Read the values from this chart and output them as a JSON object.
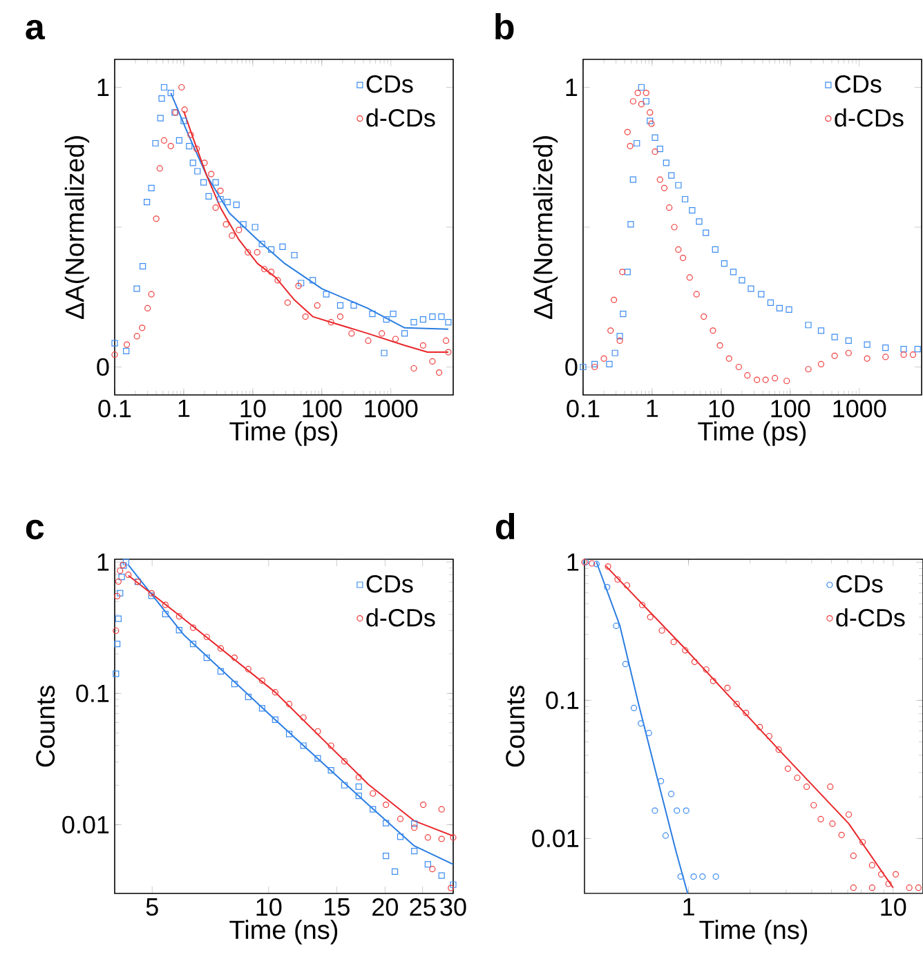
{
  "chart_data": [
    {
      "type": "scatter",
      "title": "a",
      "xlabel": "Time (ps)",
      "ylabel": "ΔA(Normalized)",
      "log": "x",
      "legend": "top right",
      "xlim": [
        0.1,
        8000
      ],
      "ylim": [
        -0.1,
        1.1
      ],
      "xticks": [
        0.1,
        1,
        10,
        100,
        1000
      ],
      "yticks": [
        0,
        {
          "value": 0.5,
          "label": null
        },
        1
      ],
      "series": [
        {
          "name": "CDs",
          "color": "#3c8cf0",
          "marker": "square",
          "x": [
            0.1,
            0.147,
            0.209,
            0.255,
            0.293,
            0.34,
            0.39,
            0.46,
            0.48,
            0.52,
            0.65,
            0.74,
            0.86,
            1.0,
            1.2,
            1.36,
            1.58,
            1.94,
            2.3,
            2.9,
            3.4,
            4.3,
            5.8,
            7.3,
            10.8,
            13.6,
            18.5,
            27,
            40,
            50,
            74,
            116,
            185,
            290,
            540,
            800,
            860,
            1080,
            1580,
            2150,
            2930,
            4000,
            5400,
            6800
          ],
          "values": [
            0.085,
            0.057,
            0.28,
            0.36,
            0.59,
            0.64,
            0.8,
            0.89,
            0.96,
            1.0,
            0.98,
            0.91,
            0.81,
            0.88,
            0.79,
            0.73,
            0.7,
            0.66,
            0.61,
            0.66,
            0.6,
            0.59,
            0.58,
            0.51,
            0.5,
            0.44,
            0.42,
            0.43,
            0.4,
            0.3,
            0.31,
            0.26,
            0.22,
            0.22,
            0.19,
            0.05,
            0.17,
            0.19,
            0.12,
            0.16,
            0.17,
            0.18,
            0.18,
            0.16
          ]
        },
        {
          "name": "d-CDs",
          "color": "#f03c3c",
          "marker": "circle",
          "x": [
            0.1,
            0.15,
            0.21,
            0.25,
            0.3,
            0.34,
            0.4,
            0.45,
            0.52,
            0.65,
            0.76,
            0.93,
            1.03,
            1.26,
            1.54,
            2.0,
            2.5,
            2.9,
            3.4,
            4.1,
            5.0,
            6.3,
            8.5,
            11.6,
            14.7,
            18.5,
            23,
            32,
            46,
            58,
            86,
            136,
            185,
            270,
            470,
            740,
            1170,
            2150,
            2930,
            4000,
            5000,
            6300,
            6800
          ],
          "values": [
            0.044,
            0.08,
            0.11,
            0.14,
            0.21,
            0.26,
            0.53,
            0.71,
            0.81,
            0.79,
            0.91,
            1.0,
            0.92,
            0.83,
            0.78,
            0.73,
            0.69,
            0.57,
            0.63,
            0.51,
            0.47,
            0.49,
            0.41,
            0.41,
            0.35,
            0.34,
            0.31,
            0.23,
            0.29,
            0.18,
            0.22,
            0.16,
            0.18,
            0.12,
            0.094,
            0.12,
            0.1,
            -0.005,
            0.077,
            0.02,
            -0.02,
            0.094,
            0.053
          ]
        },
        {
          "type": "line",
          "color": "#2a7de1",
          "marker": "none",
          "x": [
            0.65,
            1.17,
            2.15,
            4.6,
            11.7,
            29,
            100,
            460,
            1580,
            6800
          ],
          "values": [
            0.98,
            0.83,
            0.685,
            0.55,
            0.455,
            0.37,
            0.28,
            0.21,
            0.14,
            0.135
          ]
        },
        {
          "type": "line",
          "color": "#e8262a",
          "marker": "none",
          "x": [
            1.0,
            1.36,
            2.15,
            3.4,
            6.3,
            11.7,
            21.5,
            40,
            74,
            136,
            460,
            1580,
            3400,
            6800
          ],
          "values": [
            0.915,
            0.82,
            0.685,
            0.57,
            0.455,
            0.37,
            0.32,
            0.24,
            0.18,
            0.16,
            0.12,
            0.077,
            0.053,
            0.053
          ]
        }
      ]
    },
    {
      "type": "scatter",
      "title": "b",
      "xlabel": "Time (ps)",
      "ylabel": "ΔA(Normalized)",
      "log": "x",
      "legend": "top right",
      "xlim": [
        0.1,
        8000
      ],
      "ylim": [
        -0.1,
        1.1
      ],
      "xticks": [
        0.1,
        1,
        10,
        100,
        1000
      ],
      "yticks": [
        0,
        {
          "value": 0.5,
          "label": null
        },
        1
      ],
      "series": [
        {
          "name": "CDs",
          "color": "#3c8cf0",
          "marker": "square",
          "x": [
            0.1,
            0.147,
            0.24,
            0.29,
            0.34,
            0.38,
            0.44,
            0.49,
            0.53,
            0.6,
            0.7,
            0.82,
            0.93,
            1.1,
            1.3,
            1.6,
            1.9,
            2.4,
            3.0,
            3.8,
            4.8,
            6.0,
            8.2,
            11.1,
            15,
            20,
            27,
            38,
            52,
            70,
            96,
            183,
            280,
            440,
            700,
            1300,
            2400,
            4400,
            7000
          ],
          "values": [
            0,
            0.01,
            0.01,
            0.05,
            0.11,
            0.19,
            0.34,
            0.51,
            0.67,
            0.8,
            1.0,
            0.95,
            0.88,
            0.82,
            0.78,
            0.73,
            0.685,
            0.65,
            0.6,
            0.56,
            0.52,
            0.48,
            0.42,
            0.37,
            0.34,
            0.31,
            0.28,
            0.26,
            0.23,
            0.21,
            0.205,
            0.15,
            0.13,
            0.107,
            0.094,
            0.08,
            0.069,
            0.064,
            0.064
          ]
        },
        {
          "name": "d-CDs",
          "color": "#f03c3c",
          "marker": "circle",
          "x": [
            0.147,
            0.2,
            0.25,
            0.28,
            0.34,
            0.37,
            0.44,
            0.48,
            0.53,
            0.62,
            0.7,
            0.82,
            0.93,
            0.98,
            1.1,
            1.3,
            1.5,
            1.77,
            2.1,
            2.4,
            2.8,
            3.5,
            4.4,
            5.6,
            7.6,
            9.6,
            13,
            18,
            24,
            33,
            44,
            60,
            89,
            183,
            280,
            440,
            700,
            1300,
            2400,
            4400,
            6000
          ],
          "values": [
            0,
            0.03,
            0.13,
            0.24,
            0.094,
            0.34,
            0.84,
            0.79,
            0.95,
            0.98,
            0.94,
            0.98,
            0.91,
            0.87,
            0.77,
            0.67,
            0.64,
            0.57,
            0.5,
            0.42,
            0.39,
            0.32,
            0.26,
            0.18,
            0.13,
            0.077,
            0.03,
            0,
            -0.03,
            -0.046,
            -0.046,
            -0.04,
            -0.05,
            -0.008,
            0.01,
            0.04,
            0.05,
            0.03,
            0.036,
            0.044,
            0.044
          ]
        }
      ]
    },
    {
      "type": "scatter",
      "title": "c",
      "xlabel": "Time (ns)",
      "ylabel": "Counts",
      "log": "xy",
      "legend": "top right",
      "xlim": [
        4,
        30
      ],
      "ylim": [
        0.003,
        1.05
      ],
      "xticks": [
        5,
        10,
        15,
        20,
        25,
        30
      ],
      "yticks": [
        0.01,
        0.1,
        1
      ],
      "series": [
        {
          "name": "CDs",
          "color": "#3c8cf0",
          "marker": "square",
          "x": [
            4.03,
            4.06,
            4.09,
            4.13,
            4.17,
            4.22,
            4.28,
            4.59,
            4.98,
            5.41,
            5.87,
            6.38,
            6.92,
            7.52,
            8.16,
            8.86,
            9.62,
            10.4,
            11.3,
            12.3,
            13.4,
            14.5,
            15.7,
            17.1,
            17.1,
            18.6,
            20.1,
            20.1,
            21.2,
            21.9,
            23.8,
            23.8,
            25.8,
            28.0,
            30
          ],
          "values": [
            0.141,
            0.238,
            0.37,
            0.58,
            0.77,
            0.94,
            1.0,
            0.707,
            0.554,
            0.402,
            0.303,
            0.238,
            0.187,
            0.147,
            0.118,
            0.094,
            0.077,
            0.063,
            0.049,
            0.04,
            0.032,
            0.026,
            0.02,
            0.0166,
            0.0195,
            0.0131,
            0.0103,
            0.0058,
            0.0044,
            0.0081,
            0.0063,
            0.0102,
            0.005,
            0.0041,
            0.0035
          ]
        },
        {
          "name": "d-CDs",
          "color": "#f03c3c",
          "marker": "circle",
          "x": [
            4.03,
            4.06,
            4.09,
            4.13,
            4.2,
            4.34,
            4.59,
            4.98,
            5.41,
            5.87,
            6.38,
            6.92,
            7.52,
            8.16,
            8.86,
            9.62,
            10.4,
            11.3,
            12.3,
            13.4,
            14.5,
            15.7,
            17.1,
            18.6,
            20.1,
            21.9,
            23.8,
            25.1,
            25.8,
            26.5,
            28.0,
            28.0,
            29.6,
            30
          ],
          "values": [
            0.3,
            0.55,
            0.71,
            0.86,
            0.95,
            0.8,
            0.707,
            0.578,
            0.472,
            0.386,
            0.316,
            0.269,
            0.22,
            0.187,
            0.153,
            0.125,
            0.102,
            0.083,
            0.0655,
            0.0514,
            0.04,
            0.0304,
            0.023,
            0.0173,
            0.0142,
            0.0111,
            0.0095,
            0.0142,
            0.008,
            0.0046,
            0.0078,
            0.0131,
            0.0033,
            0.008
          ]
        },
        {
          "type": "line",
          "color": "#2a7de1",
          "marker": "none",
          "x": [
            4.34,
            6.03,
            10.4,
            18.1,
            23.8,
            30
          ],
          "values": [
            0.95,
            0.28,
            0.063,
            0.0142,
            0.0069,
            0.005
          ]
        },
        {
          "type": "line",
          "color": "#e8262a",
          "marker": "none",
          "x": [
            4.34,
            6.03,
            10.4,
            18.1,
            23.8,
            30
          ],
          "values": [
            0.79,
            0.37,
            0.102,
            0.0203,
            0.0107,
            0.0082
          ]
        }
      ]
    },
    {
      "type": "scatter",
      "title": "d",
      "xlabel": "Time (ns)",
      "ylabel": "Counts",
      "log": "xy",
      "legend": "top right",
      "xlim": [
        0.31,
        14
      ],
      "ylim": [
        0.004,
        1.05
      ],
      "xticks": [
        1,
        10
      ],
      "yticks": [
        0.01,
        0.1,
        1
      ],
      "series": [
        {
          "name": "CDs",
          "color": "#3c8cf0",
          "marker": "circle",
          "x": [
            0.315,
            0.355,
            0.4,
            0.443,
            0.492,
            0.541,
            0.585,
            0.64,
            0.685,
            0.733,
            0.773,
            0.823,
            0.877,
            0.915,
            0.974,
            1.06,
            1.17,
            1.36
          ],
          "values": [
            1,
            0.97,
            0.66,
            0.346,
            0.183,
            0.088,
            0.068,
            0.058,
            0.0159,
            0.026,
            0.0105,
            0.021,
            0.0159,
            0.0053,
            0.0159,
            0.0053,
            0.0053,
            0.0053
          ]
        },
        {
          "name": "d-CDs",
          "color": "#f03c3c",
          "marker": "circle",
          "x": [
            0.31,
            0.337,
            0.404,
            0.45,
            0.5,
            0.594,
            0.65,
            0.741,
            0.846,
            0.964,
            1.07,
            1.22,
            1.32,
            1.55,
            1.72,
            1.91,
            2.23,
            2.48,
            2.76,
            3.06,
            3.4,
            3.78,
            4.09,
            4.43,
            4.93,
            5.05,
            5.6,
            6.07,
            6.4,
            6.4,
            7.1,
            7.9,
            7.9,
            8.75,
            9.5,
            10.3,
            12.0,
            13.3
          ],
          "values": [
            1,
            0.98,
            0.93,
            0.75,
            0.68,
            0.49,
            0.4,
            0.32,
            0.265,
            0.23,
            0.19,
            0.167,
            0.138,
            0.123,
            0.094,
            0.081,
            0.064,
            0.055,
            0.044,
            0.032,
            0.0275,
            0.0237,
            0.0174,
            0.0138,
            0.0237,
            0.0128,
            0.0106,
            0.0149,
            0.0075,
            0.0044,
            0.0094,
            0.0064,
            0.0044,
            0.0055,
            0.0047,
            0.0055,
            0.0044,
            0.0044
          ]
        },
        {
          "type": "line",
          "color": "#2a7de1",
          "marker": "none",
          "x": [
            0.355,
            0.462,
            0.57,
            0.703,
            0.868,
            0.99
          ],
          "values": [
            1,
            0.346,
            0.094,
            0.0275,
            0.0081,
            0.004
          ]
        },
        {
          "type": "line",
          "color": "#e8262a",
          "marker": "none",
          "x": [
            0.394,
            0.964,
            2.76,
            6.07,
            10
          ],
          "values": [
            0.94,
            0.236,
            0.044,
            0.0128,
            0.0044
          ]
        }
      ]
    }
  ]
}
